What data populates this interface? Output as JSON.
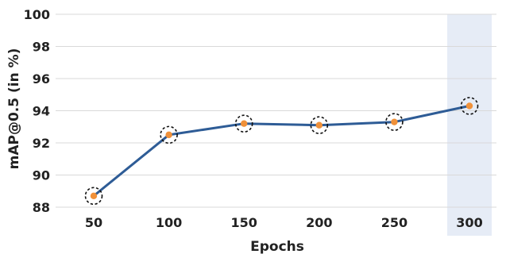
{
  "chart_data": {
    "type": "line",
    "xlabel": "Epochs",
    "ylabel": "mAP@0.5 (in %)",
    "x": [
      50,
      100,
      150,
      200,
      250,
      300
    ],
    "x_tick_labels": [
      "50",
      "100",
      "150",
      "200",
      "250",
      "300"
    ],
    "ylim": [
      88,
      100
    ],
    "y_ticks": [
      88,
      90,
      92,
      94,
      96,
      98,
      100
    ],
    "grid": "horizontal",
    "series": [
      {
        "values": [
          88.7,
          92.5,
          93.2,
          93.1,
          93.3,
          94.3
        ]
      }
    ],
    "highlight_x": 300,
    "colors": {
      "line": "#2e5c96",
      "marker": "#f0913a",
      "highlight_band": "#e6ecf6",
      "grid": "#d9d9d9",
      "marker_ring": "#111111"
    }
  }
}
